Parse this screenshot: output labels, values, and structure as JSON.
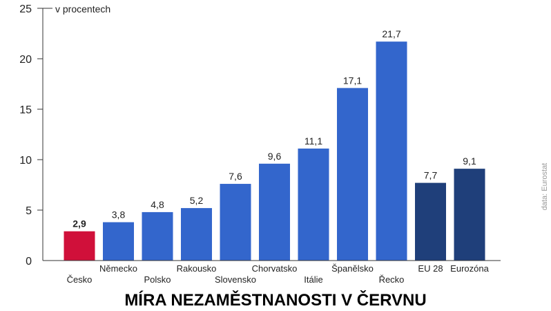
{
  "chart_data": {
    "type": "bar",
    "title": "MÍRA NEZAMĚSTNANOSTI V ČERVNU",
    "ylabel": "v procentech",
    "xlabel": "",
    "source": "data: Eurostat",
    "ylim": [
      0,
      25
    ],
    "yticks": [
      0,
      5,
      10,
      15,
      20,
      25
    ],
    "categories": [
      "Česko",
      "Německo",
      "Polsko",
      "Rakousko",
      "Slovensko",
      "Chorvatsko",
      "Itálie",
      "Španělsko",
      "Řecko",
      "EU 28",
      "Eurozóna"
    ],
    "values": [
      2.9,
      3.8,
      4.8,
      5.2,
      7.6,
      9.6,
      11.1,
      17.1,
      21.7,
      7.7,
      9.1
    ],
    "value_labels": [
      "2,9",
      "3,8",
      "4,8",
      "5,2",
      "7,6",
      "9,6",
      "11,1",
      "17,1",
      "21,7",
      "7,7",
      "9,1"
    ],
    "label_row": [
      "low",
      "high",
      "low",
      "high",
      "low",
      "high",
      "low",
      "high",
      "low",
      "high",
      "high"
    ],
    "bar_colors": [
      "#d0103a",
      "#3366cc",
      "#3366cc",
      "#3366cc",
      "#3366cc",
      "#3366cc",
      "#3366cc",
      "#3366cc",
      "#3366cc",
      "#1f3f7a",
      "#1f3f7a"
    ],
    "grid": false
  }
}
